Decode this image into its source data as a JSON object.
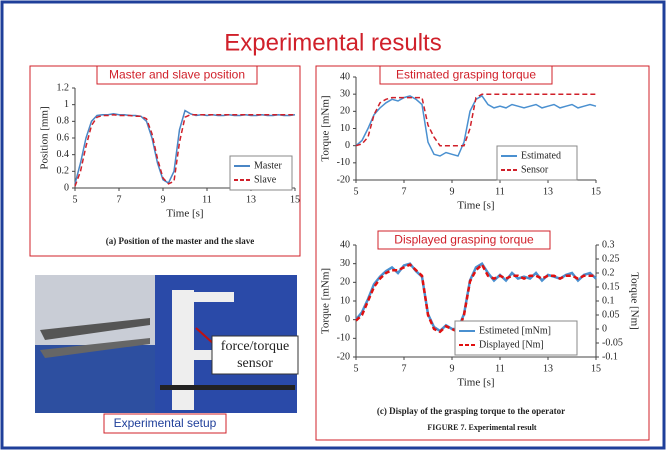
{
  "title": "Experimental results",
  "chart_data": [
    {
      "type": "line",
      "title": "Master and slave position",
      "caption": "(a) Position of the master and the slave",
      "xlabel": "Time [s]",
      "ylabel": "Position [mm]",
      "x": [
        5,
        5.25,
        5.5,
        5.75,
        6,
        6.25,
        6.5,
        6.75,
        7,
        7.25,
        7.5,
        7.75,
        8,
        8.25,
        8.5,
        8.75,
        9,
        9.25,
        9.5,
        9.75,
        10,
        10.25,
        10.5,
        10.75,
        11,
        11.25,
        11.5,
        11.75,
        12,
        12.25,
        12.5,
        12.75,
        13,
        13.25,
        13.5,
        13.75,
        14,
        14.25,
        14.5,
        14.75,
        15
      ],
      "series": [
        {
          "name": "Master",
          "color": "#4a86c5",
          "style": "solid",
          "values": [
            0.05,
            0.3,
            0.6,
            0.8,
            0.87,
            0.88,
            0.88,
            0.89,
            0.88,
            0.88,
            0.87,
            0.87,
            0.86,
            0.8,
            0.6,
            0.3,
            0.1,
            0.06,
            0.2,
            0.7,
            0.93,
            0.89,
            0.87,
            0.88,
            0.87,
            0.88,
            0.87,
            0.87,
            0.88,
            0.87,
            0.87,
            0.88,
            0.87,
            0.87,
            0.88,
            0.87,
            0.87,
            0.88,
            0.87,
            0.87,
            0.88
          ]
        },
        {
          "name": "Slave",
          "color": "#d0202a",
          "style": "dashed",
          "values": [
            0.02,
            0.2,
            0.5,
            0.75,
            0.85,
            0.87,
            0.87,
            0.88,
            0.87,
            0.87,
            0.87,
            0.86,
            0.86,
            0.83,
            0.65,
            0.35,
            0.12,
            0.05,
            0.08,
            0.55,
            0.85,
            0.88,
            0.88,
            0.88,
            0.88,
            0.88,
            0.88,
            0.88,
            0.88,
            0.88,
            0.88,
            0.88,
            0.88,
            0.88,
            0.88,
            0.88,
            0.88,
            0.88,
            0.88,
            0.88,
            0.88
          ]
        }
      ],
      "xlim": [
        5,
        15
      ],
      "xticks": [
        5,
        7,
        9,
        11,
        13,
        15
      ],
      "ylim": [
        0,
        1.2
      ],
      "yticks": [
        0,
        0.2,
        0.4,
        0.6,
        0.8,
        1,
        1.2
      ],
      "legend": "lower-right"
    },
    {
      "type": "line",
      "title": "Estimated grasping torque",
      "xlabel": "Time [s]",
      "ylabel": "Torque [mNm]",
      "x": [
        5,
        5.25,
        5.5,
        5.75,
        6,
        6.25,
        6.5,
        6.75,
        7,
        7.25,
        7.5,
        7.75,
        8,
        8.25,
        8.5,
        8.75,
        9,
        9.25,
        9.5,
        9.75,
        10,
        10.25,
        10.5,
        10.75,
        11,
        11.25,
        11.5,
        11.75,
        12,
        12.25,
        12.5,
        12.75,
        13,
        13.25,
        13.5,
        13.75,
        14,
        14.25,
        14.5,
        14.75,
        15
      ],
      "series": [
        {
          "name": "Estimated",
          "color": "#4a90d0",
          "style": "solid",
          "values": [
            0,
            3,
            10,
            18,
            22,
            25,
            27,
            26,
            28,
            29,
            27,
            24,
            2,
            -5,
            -6,
            -4,
            -5,
            -6,
            2,
            20,
            27,
            29,
            24,
            22,
            23,
            22,
            24,
            23,
            22,
            23,
            24,
            22,
            23,
            24,
            22,
            23,
            24,
            22,
            23,
            24,
            23
          ]
        },
        {
          "name": "Sensor",
          "color": "#d0202a",
          "style": "dashed",
          "values": [
            0,
            1,
            5,
            18,
            25,
            27,
            28,
            28,
            28,
            28,
            28,
            28,
            12,
            5,
            0,
            0,
            0,
            0,
            0,
            10,
            28,
            30,
            30,
            30,
            30,
            30,
            30,
            30,
            30,
            30,
            30,
            30,
            30,
            30,
            30,
            30,
            30,
            30,
            30,
            30,
            30
          ]
        }
      ],
      "xlim": [
        5,
        15
      ],
      "xticks": [
        5,
        7,
        9,
        11,
        13,
        15
      ],
      "ylim": [
        -20,
        40
      ],
      "yticks": [
        -20,
        -10,
        0,
        10,
        20,
        30,
        40
      ],
      "legend": "lower-right"
    },
    {
      "type": "line",
      "title": "Displayed grasping torque",
      "caption": "(c) Display of the grasping torque to the operator",
      "xlabel": "Time [s]",
      "ylabel": "Torque [mNm]",
      "y2label": "Torque [Nm]",
      "x": [
        5,
        5.25,
        5.5,
        5.75,
        6,
        6.25,
        6.5,
        6.75,
        7,
        7.25,
        7.5,
        7.75,
        8,
        8.25,
        8.5,
        8.75,
        9,
        9.25,
        9.5,
        9.75,
        10,
        10.25,
        10.5,
        10.75,
        11,
        11.25,
        11.5,
        11.75,
        12,
        12.25,
        12.5,
        12.75,
        13,
        13.25,
        13.5,
        13.75,
        14,
        14.25,
        14.5,
        14.75,
        15
      ],
      "series": [
        {
          "name": "Estimeted [mNm]",
          "color": "#4a90d0",
          "style": "solid",
          "values": [
            0,
            4,
            11,
            19,
            23,
            26,
            28,
            25,
            29,
            30,
            26,
            23,
            3,
            -4,
            -6,
            -3,
            -5,
            -5,
            3,
            21,
            28,
            30,
            25,
            21,
            24,
            21,
            25,
            22,
            23,
            22,
            25,
            21,
            24,
            23,
            22,
            24,
            25,
            21,
            24,
            25,
            22
          ]
        },
        {
          "name": "Displayed [Nm]",
          "color": "#e01010",
          "style": "dashed",
          "axis": "y2",
          "values": [
            0.03,
            0.05,
            0.1,
            0.15,
            0.18,
            0.2,
            0.21,
            0.21,
            0.22,
            0.23,
            0.21,
            0.19,
            0.05,
            0,
            -0.01,
            0.01,
            0,
            -0.01,
            0.05,
            0.17,
            0.21,
            0.23,
            0.19,
            0.18,
            0.19,
            0.18,
            0.19,
            0.19,
            0.18,
            0.19,
            0.19,
            0.18,
            0.19,
            0.19,
            0.18,
            0.19,
            0.19,
            0.18,
            0.19,
            0.19,
            0.19
          ]
        }
      ],
      "xlim": [
        5,
        15
      ],
      "xticks": [
        5,
        7,
        9,
        11,
        13,
        15
      ],
      "ylim": [
        -20,
        40
      ],
      "yticks": [
        -20,
        -10,
        0,
        10,
        20,
        30,
        40
      ],
      "y2lim": [
        -0.1,
        0.3
      ],
      "y2ticks": [
        -0.1,
        -0.05,
        0,
        0.05,
        0.1,
        0.15,
        0.2,
        0.25,
        0.3
      ],
      "legend": "lower-right"
    }
  ],
  "figure_caption": "FIGURE 7. Experimental result",
  "photo": {
    "callout": [
      "force/torque",
      "sensor"
    ],
    "label": "Experimental setup"
  }
}
